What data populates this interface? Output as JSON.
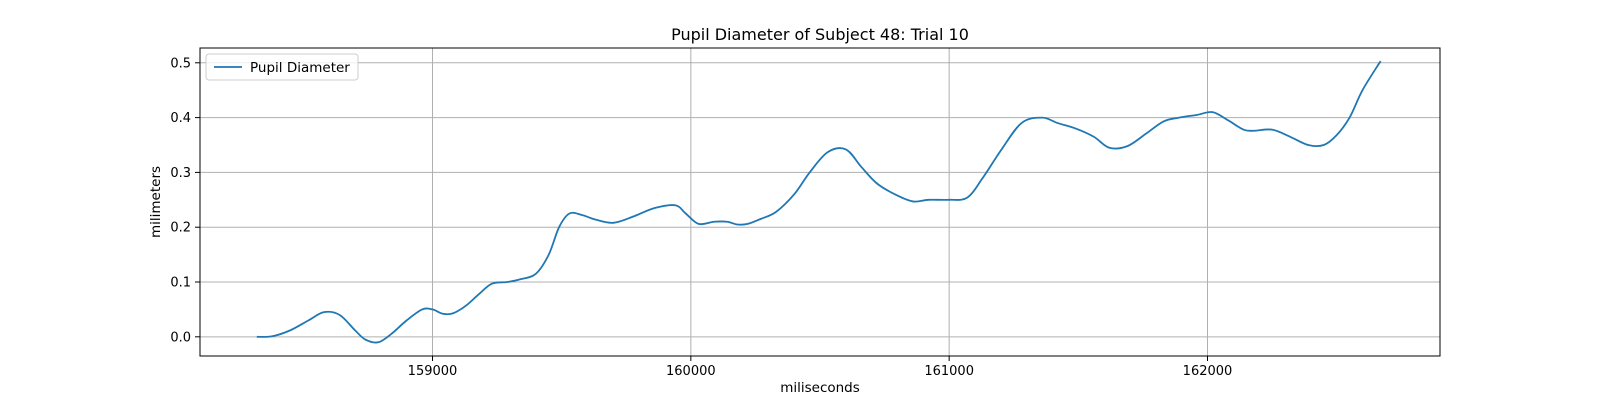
{
  "chart_data": {
    "type": "line",
    "title": "Pupil Diameter of Subject 48: Trial 10",
    "xlabel": "miliseconds",
    "ylabel": "milimeters",
    "xlim": [
      158100,
      162900
    ],
    "ylim": [
      -0.035,
      0.527
    ],
    "xticks": [
      159000,
      160000,
      161000,
      162000
    ],
    "yticks": [
      0.0,
      0.1,
      0.2,
      0.3,
      0.4,
      0.5
    ],
    "xtick_labels": [
      "159000",
      "160000",
      "161000",
      "162000"
    ],
    "ytick_labels": [
      "0.0",
      "0.1",
      "0.2",
      "0.3",
      "0.4",
      "0.5"
    ],
    "grid": true,
    "legend_position": "top-left",
    "color": "#1f77b4",
    "series": [
      {
        "name": "Pupil Diameter",
        "x": [
          158320,
          158380,
          158450,
          158520,
          158580,
          158640,
          158700,
          158740,
          158790,
          158840,
          158900,
          158960,
          159000,
          159040,
          159080,
          159130,
          159180,
          159230,
          159290,
          159340,
          159400,
          159450,
          159490,
          159530,
          159580,
          159630,
          159700,
          159780,
          159860,
          159940,
          159980,
          160030,
          160090,
          160140,
          160180,
          160220,
          160270,
          160330,
          160400,
          160460,
          160530,
          160600,
          160660,
          160720,
          160790,
          160860,
          160920,
          161000,
          161070,
          161130,
          161200,
          161280,
          161360,
          161420,
          161490,
          161560,
          161620,
          161690,
          161760,
          161830,
          161890,
          161960,
          162020,
          162080,
          162140,
          162180,
          162250,
          162320,
          162390,
          162450,
          162500,
          162550,
          162600,
          162670
        ],
        "y": [
          0.0,
          0.001,
          0.012,
          0.03,
          0.045,
          0.04,
          0.012,
          -0.005,
          -0.01,
          0.005,
          0.03,
          0.05,
          0.05,
          0.042,
          0.043,
          0.057,
          0.078,
          0.097,
          0.1,
          0.105,
          0.115,
          0.15,
          0.2,
          0.225,
          0.222,
          0.214,
          0.208,
          0.22,
          0.235,
          0.24,
          0.225,
          0.206,
          0.21,
          0.21,
          0.205,
          0.206,
          0.215,
          0.228,
          0.26,
          0.3,
          0.337,
          0.342,
          0.31,
          0.28,
          0.26,
          0.247,
          0.25,
          0.25,
          0.254,
          0.29,
          0.34,
          0.39,
          0.4,
          0.39,
          0.38,
          0.365,
          0.345,
          0.348,
          0.37,
          0.393,
          0.4,
          0.405,
          0.41,
          0.395,
          0.378,
          0.376,
          0.378,
          0.365,
          0.35,
          0.35,
          0.368,
          0.4,
          0.45,
          0.503
        ]
      }
    ]
  }
}
